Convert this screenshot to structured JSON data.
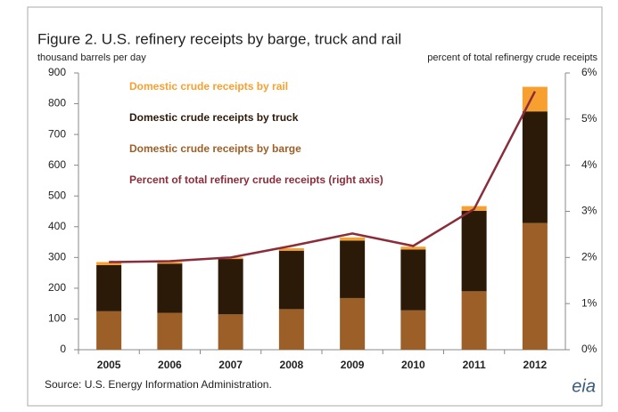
{
  "chart_data": {
    "type": "stacked-bar-line",
    "title": "Figure 2.  U.S. refinery receipts by barge, truck and rail",
    "ylabel": "thousand barrels per day",
    "y2label": "percent of total refinergy crude receipts",
    "source": "Source:  U.S. Energy Information Administration.",
    "logo": "eia",
    "categories": [
      "2005",
      "2006",
      "2007",
      "2008",
      "2009",
      "2010",
      "2011",
      "2012"
    ],
    "series": [
      {
        "name": "Domestic crude receipts  by barge",
        "color": "#9c5f27",
        "values": [
          125,
          120,
          115,
          132,
          168,
          128,
          190,
          412
        ]
      },
      {
        "name": "Domestic crude receipts  by truck",
        "color": "#2b1a07",
        "values": [
          150,
          160,
          180,
          190,
          187,
          198,
          262,
          363
        ]
      },
      {
        "name": "Domestic crude receipts  by rail",
        "color": "#f7a030",
        "values": [
          10,
          5,
          5,
          8,
          10,
          9,
          15,
          80
        ]
      },
      {
        "name": "Percent of total refinery crude receipts (right axis)",
        "color": "#8b2c3a",
        "axis": "y2",
        "values": [
          1.9,
          1.92,
          2.0,
          2.25,
          2.52,
          2.25,
          3.05,
          5.6
        ]
      }
    ],
    "ylim": [
      0,
      900
    ],
    "yticks": [
      0,
      100,
      200,
      300,
      400,
      500,
      600,
      700,
      800,
      900
    ],
    "y2lim": [
      0,
      6
    ],
    "y2ticks": [
      {
        "value": 0,
        "label": "0%"
      },
      {
        "value": 1,
        "label": "1%"
      },
      {
        "value": 2,
        "label": "2%"
      },
      {
        "value": 3,
        "label": "3%"
      },
      {
        "value": 4,
        "label": "4%"
      },
      {
        "value": 5,
        "label": "5%"
      },
      {
        "value": 6,
        "label": "6%"
      }
    ]
  }
}
